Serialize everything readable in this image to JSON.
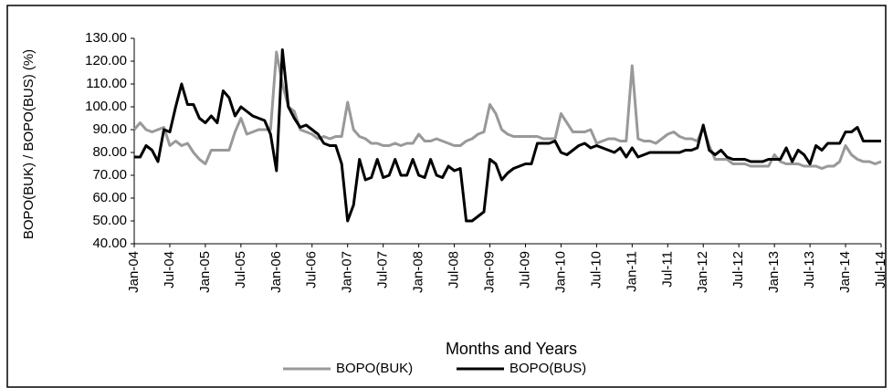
{
  "chart_data": {
    "type": "line",
    "y_label": "BOPO(BUK) / BOPO(BUS) (%)",
    "x_label": "Months and Years",
    "categories": [
      "Jan-04",
      null,
      null,
      null,
      null,
      null,
      "Jul-04",
      null,
      null,
      null,
      null,
      null,
      "Jan-05",
      null,
      null,
      null,
      null,
      null,
      "Jul-05",
      null,
      null,
      null,
      null,
      null,
      "Jan-06",
      null,
      null,
      null,
      null,
      null,
      "Jul-06",
      null,
      null,
      null,
      null,
      null,
      "Jan-07",
      null,
      null,
      null,
      null,
      null,
      "Jul-07",
      null,
      null,
      null,
      null,
      null,
      "Jan-08",
      null,
      null,
      null,
      null,
      null,
      "Jul-08",
      null,
      null,
      null,
      null,
      null,
      "Jan-09",
      null,
      null,
      null,
      null,
      null,
      "Jul-09",
      null,
      null,
      null,
      null,
      null,
      "Jan-10",
      null,
      null,
      null,
      null,
      null,
      "Jul-10",
      null,
      null,
      null,
      null,
      null,
      "Jan-11",
      null,
      null,
      null,
      null,
      null,
      "Jul-11",
      null,
      null,
      null,
      null,
      null,
      "Jan-12",
      null,
      null,
      null,
      null,
      null,
      "Jul-12",
      null,
      null,
      null,
      null,
      null,
      "Jan-13",
      null,
      null,
      null,
      null,
      null,
      "Jul-13",
      null,
      null,
      null,
      null,
      null,
      "Jan-14",
      null,
      null,
      null,
      null,
      null,
      "Jul-14"
    ],
    "series": [
      {
        "name": "BOPO(BUK)",
        "color": "#999999",
        "values": [
          90,
          93,
          90,
          89,
          90,
          91,
          83,
          85,
          83,
          84,
          80,
          77,
          75,
          81,
          81,
          81,
          81,
          89,
          95,
          88,
          89,
          90,
          90,
          90,
          124,
          110,
          100,
          98,
          90,
          89,
          88,
          86,
          87,
          86,
          87,
          87,
          102,
          90,
          87,
          86,
          84,
          84,
          83,
          83,
          84,
          83,
          84,
          84,
          88,
          85,
          85,
          86,
          85,
          84,
          83,
          83,
          85,
          86,
          88,
          89,
          101,
          97,
          90,
          88,
          87,
          87,
          87,
          87,
          87,
          86,
          86,
          86,
          97,
          93,
          89,
          89,
          89,
          90,
          84,
          85,
          86,
          86,
          85,
          85,
          118,
          86,
          85,
          85,
          84,
          86,
          88,
          89,
          87,
          86,
          86,
          85,
          91,
          83,
          77,
          77,
          77,
          75,
          75,
          75,
          74,
          74,
          74,
          74,
          79,
          76,
          75,
          75,
          75,
          74,
          74,
          74,
          73,
          74,
          74,
          76,
          83,
          79,
          77,
          76,
          76,
          75,
          76
        ]
      },
      {
        "name": "BOPO(BUS)",
        "color": "#000000",
        "values": [
          78,
          78,
          83,
          81,
          76,
          90,
          89,
          100,
          110,
          101,
          101,
          95,
          93,
          96,
          93,
          107,
          104,
          96,
          100,
          98,
          96,
          95,
          94,
          88,
          72,
          125,
          100,
          95,
          91,
          92,
          90,
          88,
          84,
          83,
          83,
          75,
          50,
          57,
          77,
          68,
          69,
          77,
          69,
          70,
          77,
          70,
          70,
          77,
          70,
          69,
          77,
          70,
          69,
          74,
          72,
          73,
          50,
          50,
          52,
          54,
          77,
          75,
          68,
          71,
          73,
          74,
          75,
          75,
          84,
          84,
          84,
          85,
          80,
          79,
          81,
          83,
          84,
          82,
          83,
          82,
          81,
          80,
          82,
          78,
          82,
          78,
          79,
          80,
          80,
          80,
          80,
          80,
          80,
          81,
          81,
          82,
          92,
          81,
          79,
          81,
          78,
          77,
          77,
          77,
          76,
          76,
          76,
          77,
          77,
          77,
          82,
          76,
          81,
          79,
          75,
          83,
          81,
          84,
          84,
          84,
          89,
          89,
          91,
          85,
          85,
          85,
          85
        ]
      }
    ],
    "ylim": [
      40,
      130
    ],
    "yticks": [
      {
        "value": 40,
        "label": "40.00"
      },
      {
        "value": 50,
        "label": "50.00"
      },
      {
        "value": 60,
        "label": "60.00"
      },
      {
        "value": 70,
        "label": "70.00"
      },
      {
        "value": 80,
        "label": "80.00"
      },
      {
        "value": 90,
        "label": "90.00"
      },
      {
        "value": 100,
        "label": "100.00"
      },
      {
        "value": 110,
        "label": "110.00"
      },
      {
        "value": 120,
        "label": "120.00"
      },
      {
        "value": 130,
        "label": "130.00"
      }
    ],
    "grid": false
  }
}
